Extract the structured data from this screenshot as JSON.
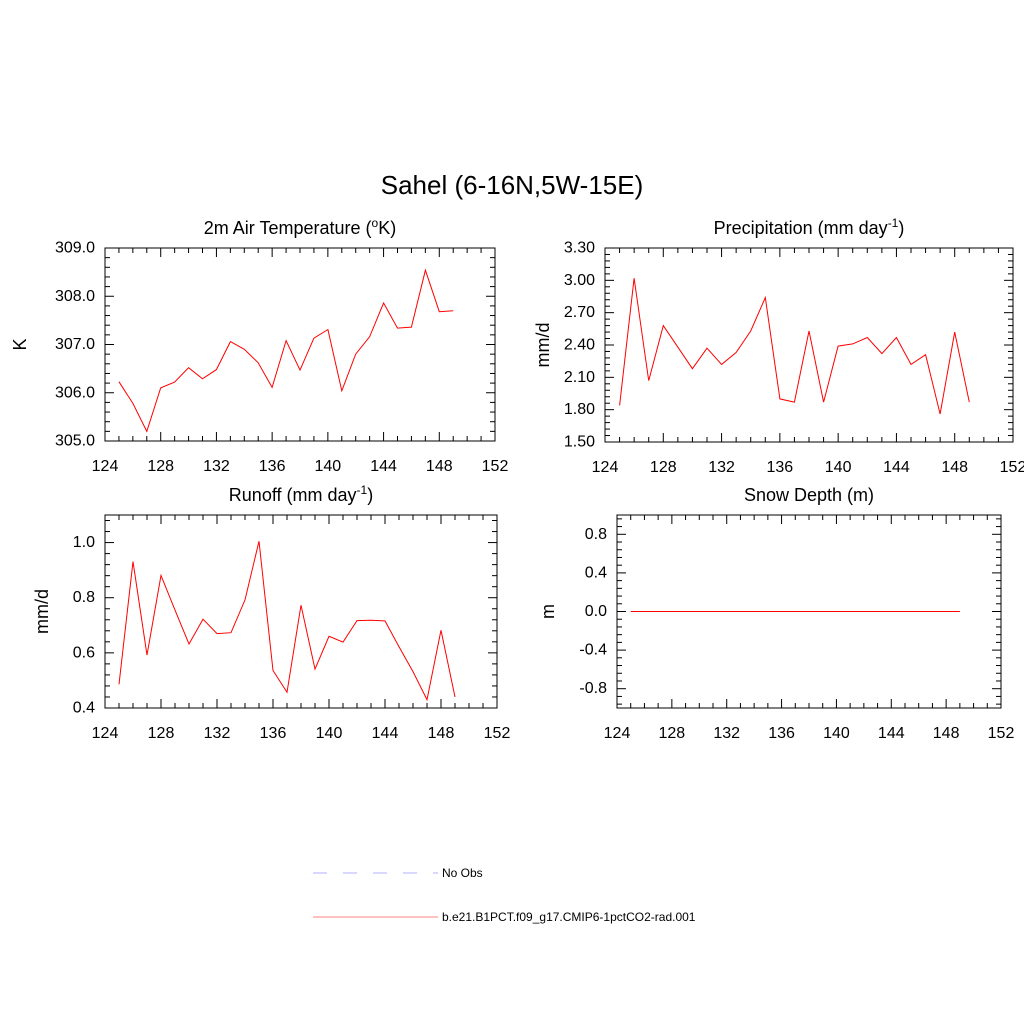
{
  "figure": {
    "title": "Sahel (6-16N,5W-15E)"
  },
  "chart_data": [
    {
      "type": "line",
      "title_parts": [
        "2m Air Temperature (",
        "o",
        "K)"
      ],
      "title_style": "sup",
      "ylabel": "K",
      "xlim": [
        124,
        152
      ],
      "ylim": [
        305.0,
        309.0
      ],
      "xticks": [
        124,
        128,
        132,
        136,
        140,
        144,
        148,
        152
      ],
      "yticks": [
        "305.0",
        "306.0",
        "307.0",
        "308.0",
        "309.0"
      ],
      "x": [
        125,
        126,
        127,
        128,
        129,
        130,
        131,
        132,
        133,
        134,
        135,
        136,
        137,
        138,
        139,
        140,
        141,
        142,
        143,
        144,
        145,
        146,
        147,
        148,
        149
      ],
      "series": [
        {
          "values": [
            306.23,
            305.78,
            305.2,
            306.1,
            306.22,
            306.52,
            306.29,
            306.48,
            307.06,
            306.9,
            306.62,
            306.11,
            307.08,
            306.47,
            307.13,
            307.31,
            306.04,
            306.8,
            307.16,
            307.86,
            307.34,
            307.36,
            308.54,
            307.68,
            307.7
          ]
        }
      ]
    },
    {
      "type": "line",
      "title_parts": [
        "Precipitation (mm day",
        "-1",
        ")"
      ],
      "title_style": "sup",
      "ylabel": "mm/d",
      "xlim": [
        124,
        152
      ],
      "ylim": [
        1.5,
        3.3
      ],
      "xticks": [
        124,
        128,
        132,
        136,
        140,
        144,
        148,
        152
      ],
      "yticks": [
        "1.50",
        "1.80",
        "2.10",
        "2.40",
        "2.70",
        "3.00",
        "3.30"
      ],
      "x": [
        125,
        126,
        127,
        128,
        129,
        130,
        131,
        132,
        133,
        134,
        135,
        136,
        137,
        138,
        139,
        140,
        141,
        142,
        143,
        144,
        145,
        146,
        147,
        148,
        149
      ],
      "series": [
        {
          "values": [
            1.84,
            3.02,
            2.07,
            2.58,
            2.38,
            2.18,
            2.37,
            2.22,
            2.33,
            2.53,
            2.84,
            1.9,
            1.87,
            2.53,
            1.87,
            2.39,
            2.41,
            2.47,
            2.32,
            2.47,
            2.22,
            2.31,
            1.76,
            2.52,
            1.87
          ]
        }
      ]
    },
    {
      "type": "line",
      "title_parts": [
        "Runoff (mm day",
        "-1",
        ")"
      ],
      "title_style": "sup",
      "ylabel": "mm/d",
      "xlim": [
        124,
        152
      ],
      "ylim": [
        0.4,
        1.1
      ],
      "xticks": [
        124,
        128,
        132,
        136,
        140,
        144,
        148,
        152
      ],
      "yticks": [
        "0.4",
        "0.6",
        "0.8",
        "1.0"
      ],
      "x": [
        125,
        126,
        127,
        128,
        129,
        130,
        131,
        132,
        133,
        134,
        135,
        136,
        137,
        138,
        139,
        140,
        141,
        142,
        143,
        144,
        145,
        146,
        147,
        148,
        149
      ],
      "series": [
        {
          "values": [
            0.486,
            0.931,
            0.592,
            0.881,
            0.755,
            0.632,
            0.722,
            0.67,
            0.673,
            0.792,
            1.005,
            0.536,
            0.457,
            0.773,
            0.541,
            0.66,
            0.639,
            0.717,
            0.718,
            0.716,
            0.622,
            0.532,
            0.43,
            0.682,
            0.44
          ]
        }
      ]
    },
    {
      "type": "line",
      "title_parts": [
        "Snow Depth (m)"
      ],
      "title_style": "plain",
      "ylabel": "m",
      "xlim": [
        124,
        152
      ],
      "ylim": [
        -1.0,
        1.0
      ],
      "xticks": [
        124,
        128,
        132,
        136,
        140,
        144,
        148,
        152
      ],
      "yticks": [
        "-0.8",
        "-0.4",
        "0.0",
        "0.4",
        "0.8"
      ],
      "x": [
        125,
        149
      ],
      "series": [
        {
          "values": [
            0.0,
            0.0
          ]
        }
      ]
    }
  ],
  "legend": {
    "entries": [
      {
        "label": "No Obs",
        "color": "#b0b0ff",
        "dash": "14,16"
      },
      {
        "label": "b.e21.B1PCT.f09_g17.CMIP6-1pctCO2-rad.001",
        "color": "#ff8080",
        "dash": ""
      }
    ]
  }
}
